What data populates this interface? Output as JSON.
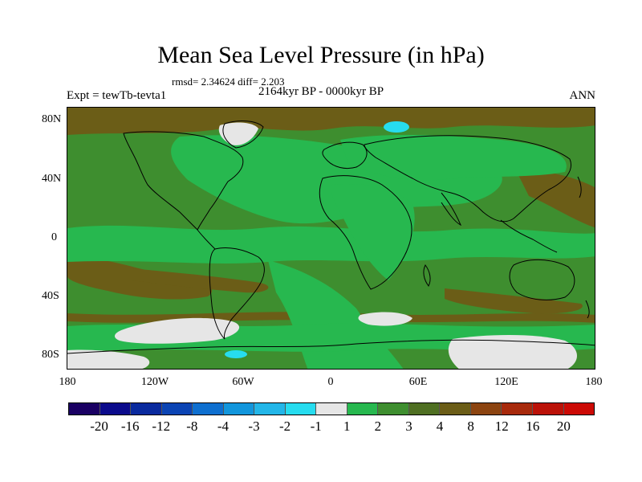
{
  "header": {
    "title": "Mean Sea Level Pressure (in hPa)",
    "stats": "rmsd= 2.34624 diff= 2.203",
    "subtitle": "2164kyr BP - 0000kyr BP",
    "left_label": "Expt = tewTb-tevta1",
    "right_label": "ANN"
  },
  "axes": {
    "y_ticks": [
      "80N",
      "40N",
      "0",
      "40S",
      "80S"
    ],
    "x_ticks": [
      "180",
      "120W",
      "60W",
      "0",
      "60E",
      "120E",
      "180"
    ]
  },
  "colorbar": {
    "labels": [
      "-20",
      "-16",
      "-12",
      "-8",
      "-4",
      "-3",
      "-2",
      "-1",
      "1",
      "2",
      "3",
      "4",
      "8",
      "12",
      "16",
      "20"
    ],
    "colors": [
      "#1a0063",
      "#0b0b8c",
      "#0a2a9e",
      "#0b44b4",
      "#0e6fcf",
      "#1296dc",
      "#23b6e8",
      "#27dcef",
      "#e6e6e6",
      "#27b84f",
      "#3e8e2f",
      "#4f6f22",
      "#6b5d17",
      "#8c4410",
      "#a82a0c",
      "#bb1208",
      "#cc0a05"
    ]
  },
  "map_colors": {
    "ocean_base": "#3e8e2f",
    "light_green": "#27b84f",
    "brown": "#6b5d17",
    "white": "#e6e6e6",
    "cyan": "#27dcef"
  }
}
